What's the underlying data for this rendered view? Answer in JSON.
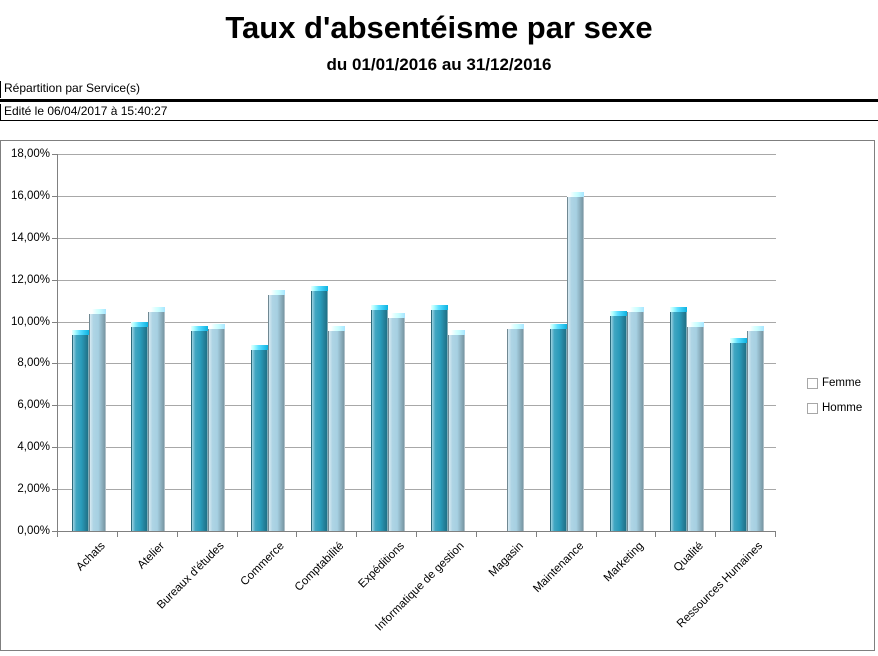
{
  "header": {
    "breakdown_label": "Répartition par Service(s)",
    "edited_label": "Edité le 06/04/2017 à 15:40:27"
  },
  "colors": {
    "femme": "#2b9cbb",
    "homme": "#a6d0e2",
    "gridline": "#a8a8a8",
    "axis": "#808080",
    "chart_border": "#7f7f7f"
  },
  "chart_data": {
    "type": "bar",
    "title": "Taux d'absentéisme par sexe",
    "subtitle": "du 01/01/2016 au 31/12/2016",
    "categories": [
      "Achats",
      "Atelier",
      "Bureaux d'études",
      "Commerce",
      "Comptabilité",
      "Expéditions",
      "Informatique de gestion",
      "Magasin",
      "Maintenance",
      "Marketing",
      "Qualité",
      "Ressources Humaines"
    ],
    "series": [
      {
        "name": "Femme",
        "values": [
          9.6,
          10.0,
          9.8,
          8.9,
          11.7,
          10.8,
          10.8,
          null,
          9.9,
          10.5,
          10.7,
          9.2
        ]
      },
      {
        "name": "Homme",
        "values": [
          10.6,
          10.7,
          9.9,
          11.5,
          9.8,
          10.4,
          9.6,
          9.9,
          16.2,
          10.7,
          10.0,
          9.8
        ]
      }
    ],
    "xlabel": "",
    "ylabel": "",
    "ylim": [
      0,
      18
    ],
    "ytick_step": 2,
    "ytick_labels": [
      "0,00%",
      "2,00%",
      "4,00%",
      "6,00%",
      "8,00%",
      "10,00%",
      "12,00%",
      "14,00%",
      "16,00%",
      "18,00%"
    ],
    "grid": true,
    "legend_position": "right",
    "legend_entries": [
      "Femme",
      "Homme"
    ]
  }
}
